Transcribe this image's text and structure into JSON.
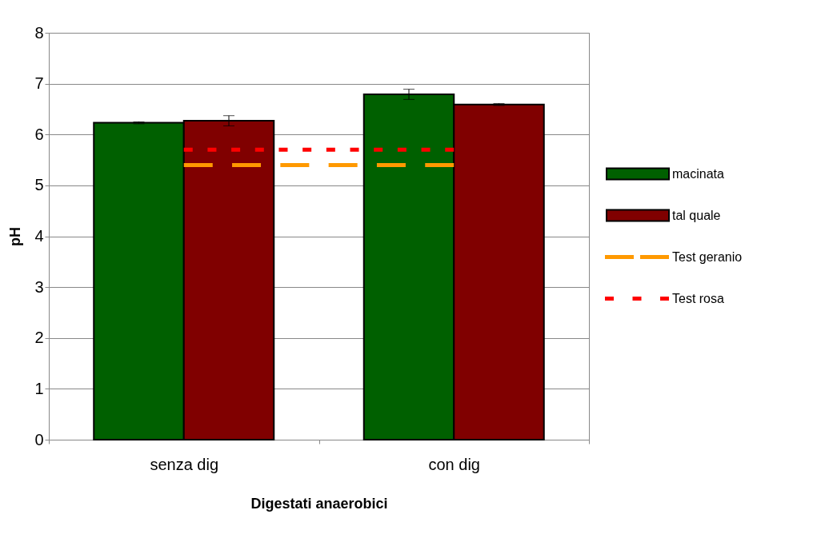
{
  "chart_data": {
    "type": "bar",
    "xlabel": "Digestati anaerobici",
    "ylabel": "pH",
    "categories": [
      "senza dig",
      "con dig"
    ],
    "series": [
      {
        "name": "macinata",
        "color": "#006000",
        "values": [
          6.23,
          6.79
        ],
        "errors": [
          0.02,
          0.1
        ]
      },
      {
        "name": "tal quale",
        "color": "#800000",
        "values": [
          6.27,
          6.59
        ],
        "errors": [
          0.1,
          0.02
        ]
      },
      {
        "name": "Test geranio",
        "type": "line",
        "color": "#ff9900",
        "line_style": "dashed",
        "values": [
          5.4,
          5.4
        ]
      },
      {
        "name": "Test rosa",
        "type": "line",
        "color": "#ff0000",
        "line_style": "dotted",
        "values": [
          5.7,
          5.7
        ]
      }
    ],
    "ylim": [
      0,
      8
    ],
    "yticks": [
      0,
      1,
      2,
      3,
      4,
      5,
      6,
      7,
      8
    ],
    "grid": "y",
    "legend": "right"
  }
}
